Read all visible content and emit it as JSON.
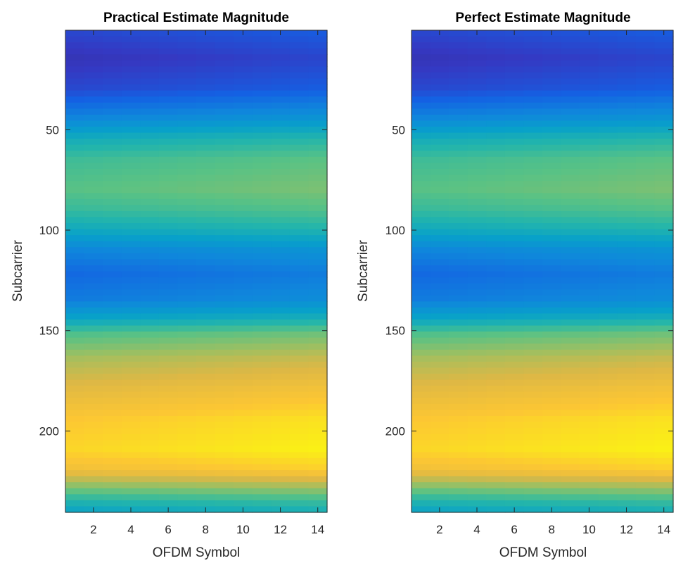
{
  "chart_data": [
    {
      "type": "heatmap",
      "title": "Practical Estimate Magnitude",
      "xlabel": "OFDM Symbol",
      "ylabel": "Subcarrier",
      "x_ticks": [
        2,
        4,
        6,
        8,
        10,
        12,
        14
      ],
      "y_ticks": [
        50,
        100,
        150,
        200
      ],
      "xlim": [
        0.5,
        14.5
      ],
      "ylim": [
        0.5,
        240.5
      ],
      "y_direction": "reversed",
      "colormap": "parula",
      "grid": false,
      "magnitude_profile": {
        "subcarrier": [
          1,
          15,
          30,
          45,
          55,
          65,
          80,
          90,
          100,
          110,
          122,
          135,
          145,
          152,
          165,
          180,
          195,
          210,
          220,
          228,
          235,
          240
        ],
        "value": [
          0.14,
          0.08,
          0.14,
          0.3,
          0.45,
          0.55,
          0.6,
          0.54,
          0.44,
          0.3,
          0.22,
          0.27,
          0.42,
          0.58,
          0.72,
          0.82,
          0.9,
          0.93,
          0.86,
          0.67,
          0.5,
          0.42
        ]
      },
      "symbol_trend": {
        "symbol": [
          1,
          14
        ],
        "shift": [
          0.0,
          0.05
        ]
      }
    },
    {
      "type": "heatmap",
      "title": "Perfect Estimate Magnitude",
      "xlabel": "OFDM Symbol",
      "ylabel": "Subcarrier",
      "x_ticks": [
        2,
        4,
        6,
        8,
        10,
        12,
        14
      ],
      "y_ticks": [
        50,
        100,
        150,
        200
      ],
      "xlim": [
        0.5,
        14.5
      ],
      "ylim": [
        0.5,
        240.5
      ],
      "y_direction": "reversed",
      "colormap": "parula",
      "grid": false,
      "magnitude_profile": {
        "subcarrier": [
          1,
          15,
          30,
          45,
          55,
          65,
          80,
          90,
          100,
          110,
          122,
          135,
          145,
          152,
          165,
          180,
          195,
          210,
          220,
          228,
          235,
          240
        ],
        "value": [
          0.14,
          0.08,
          0.14,
          0.3,
          0.45,
          0.55,
          0.6,
          0.54,
          0.44,
          0.3,
          0.22,
          0.27,
          0.42,
          0.58,
          0.72,
          0.82,
          0.9,
          0.93,
          0.86,
          0.67,
          0.5,
          0.42
        ]
      },
      "symbol_trend": {
        "symbol": [
          1,
          14
        ],
        "shift": [
          0.0,
          0.05
        ]
      }
    }
  ]
}
